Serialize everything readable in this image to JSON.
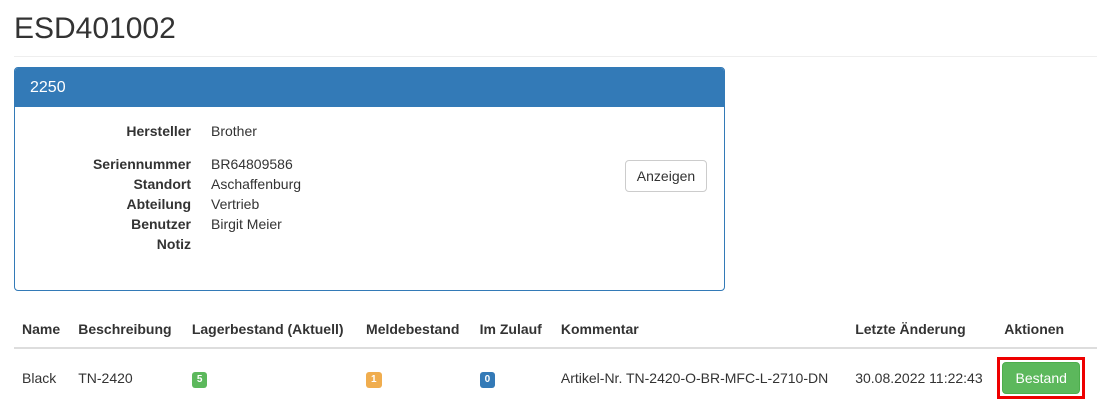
{
  "page": {
    "title": "ESD401002"
  },
  "panel": {
    "heading": "2250",
    "show_button": "Anzeigen",
    "fields": [
      {
        "label": "Hersteller",
        "value": "Brother"
      },
      {
        "label": "Seriennummer",
        "value": "BR64809586"
      },
      {
        "label": "Standort",
        "value": "Aschaffenburg"
      },
      {
        "label": "Abteilung",
        "value": "Vertrieb"
      },
      {
        "label": "Benutzer",
        "value": "Birgit Meier"
      },
      {
        "label": "Notiz",
        "value": ""
      }
    ]
  },
  "table": {
    "headers": [
      "Name",
      "Beschreibung",
      "Lagerbestand (Aktuell)",
      "Meldebestand",
      "Im Zulauf",
      "Kommentar",
      "Letzte Änderung",
      "Aktionen"
    ],
    "rows": [
      {
        "name": "Black",
        "beschreibung": "TN-2420",
        "lager": "5",
        "melde": "1",
        "zulauf": "0",
        "kommentar": "Artikel-Nr. TN-2420-O-BR-MFC-L-2710-DN",
        "geaendert": "30.08.2022 11:22:43",
        "action": "Bestand"
      }
    ]
  },
  "colors": {
    "primary": "#337ab7",
    "success": "#5cb85c",
    "warning": "#f0ad4e",
    "highlight": "#e00000"
  }
}
